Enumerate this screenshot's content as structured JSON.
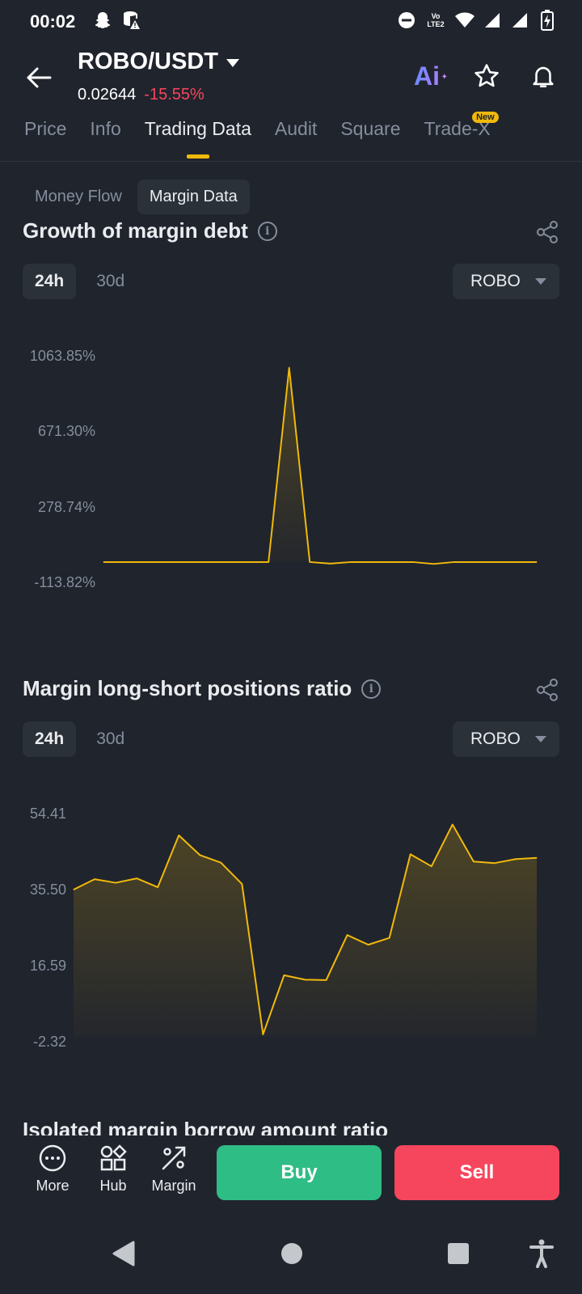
{
  "status_bar": {
    "time": "00:02",
    "network_label": "Vo LTE2"
  },
  "header": {
    "pair": "ROBO/USDT",
    "price": "0.02644",
    "change": "-15.55%",
    "ai_label": "Ai"
  },
  "tabs": [
    {
      "label": "Price",
      "active": false
    },
    {
      "label": "Info",
      "active": false
    },
    {
      "label": "Trading Data",
      "active": true
    },
    {
      "label": "Audit",
      "active": false
    },
    {
      "label": "Square",
      "active": false
    },
    {
      "label": "Trade-X",
      "active": false,
      "badge": "New"
    }
  ],
  "subtabs": [
    {
      "label": "Money Flow",
      "active": false
    },
    {
      "label": "Margin Data",
      "active": true
    }
  ],
  "sections": [
    {
      "title": "Growth of margin debt",
      "range_tabs": [
        "24h",
        "30d"
      ],
      "active_range": "24h",
      "asset": "ROBO"
    },
    {
      "title": "Margin long-short positions ratio",
      "range_tabs": [
        "24h",
        "30d"
      ],
      "active_range": "24h",
      "asset": "ROBO"
    },
    {
      "title": "Isolated margin borrow amount ratio"
    }
  ],
  "chart_data": [
    {
      "type": "line",
      "title": "Growth of margin debt",
      "unit": "%",
      "y_ticks": [
        "1063.85%",
        "671.30%",
        "278.74%",
        "-113.82%"
      ],
      "ylim": [
        -113.82,
        1063.85
      ],
      "values": [
        0,
        0,
        0,
        0,
        0,
        0,
        0,
        0,
        0,
        1010,
        0,
        -8,
        0,
        0,
        0,
        0,
        -10,
        0,
        0,
        0,
        0,
        0
      ],
      "color": "#f0b90b"
    },
    {
      "type": "area",
      "title": "Margin long-short positions ratio",
      "y_ticks": [
        "54.41",
        "35.50",
        "16.59",
        "-2.32"
      ],
      "ylim": [
        -2.32,
        54.41
      ],
      "values": [
        35.9,
        38.5,
        37.6,
        38.7,
        36.5,
        49.4,
        44.5,
        42.6,
        37.3,
        -0.1,
        14.6,
        13.5,
        13.4,
        24.6,
        22.2,
        23.9,
        44.7,
        41.7,
        52.1,
        42.9,
        42.5,
        43.5,
        43.8
      ],
      "color": "#f0b90b"
    }
  ],
  "action_bar": {
    "more": "More",
    "hub": "Hub",
    "margin": "Margin",
    "buy": "Buy",
    "sell": "Sell"
  }
}
